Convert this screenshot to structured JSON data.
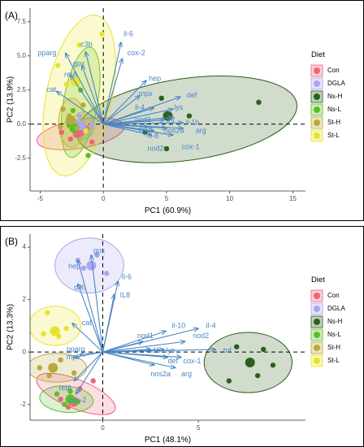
{
  "chart_data": [
    {
      "type": "scatter",
      "panel_label": "(A)",
      "xlabel": "PC1 (60.9%)",
      "ylabel": "PC2 (13.9%)",
      "xlim": [
        -5.8,
        16
      ],
      "ylim": [
        -4.9,
        8.5
      ],
      "xticks": [
        -5,
        0,
        5,
        10,
        15
      ],
      "yticks": [
        -2.5,
        0.0,
        2.5,
        5.0,
        7.5
      ],
      "ytick_labels": [
        "-2.5",
        "0.0",
        "2.5",
        "5.0",
        "7.5"
      ],
      "legend_title": "Diet",
      "groups": [
        {
          "name": "Con",
          "color": "#f0637a",
          "center": [
            -1.9,
            -0.6
          ],
          "ellipse": {
            "cx": -1.8,
            "cy": -0.7,
            "rx": 3.5,
            "ry": 1.05,
            "angle": 10
          },
          "points": [
            [
              -3.3,
              -0.6
            ],
            [
              -2.2,
              -0.8
            ],
            [
              -1.3,
              -0.3
            ],
            [
              -0.9,
              -1.3
            ],
            [
              -2.6,
              -1.1
            ]
          ]
        },
        {
          "name": "DGLA",
          "color": "#a9a6ee",
          "center": [
            -1.8,
            -0.1
          ],
          "ellipse": {
            "cx": -1.6,
            "cy": -0.1,
            "rx": 0.9,
            "ry": 1.0,
            "angle": 0
          },
          "points": [
            [
              -2.1,
              0.1
            ],
            [
              -1.4,
              -0.4
            ],
            [
              -1.9,
              0.6
            ],
            [
              -0.9,
              0.0
            ]
          ]
        },
        {
          "name": "Ns-H",
          "color": "#2c5f1d",
          "center": [
            5.1,
            0.6
          ],
          "ellipse": {
            "cx": 6.6,
            "cy": 0.35,
            "rx": 8.8,
            "ry": 3.0,
            "angle": 8
          },
          "points": [
            [
              12.3,
              1.6
            ],
            [
              5.0,
              -1.8
            ],
            [
              4.6,
              1.9
            ],
            [
              6.8,
              0.6
            ],
            [
              3.3,
              -0.6
            ]
          ]
        },
        {
          "name": "Ns-L",
          "color": "#5bbf28",
          "center": [
            -2.3,
            -0.3
          ],
          "ellipse": {
            "cx": -1.8,
            "cy": 1.6,
            "rx": 1.35,
            "ry": 4.1,
            "angle": -10
          },
          "points": [
            [
              -2.7,
              -0.1
            ],
            [
              -1.8,
              2.5
            ],
            [
              -1.2,
              -2.3
            ],
            [
              -2.4,
              1.0
            ]
          ]
        },
        {
          "name": "St-H",
          "color": "#b7a93b",
          "center": [
            -2.6,
            0.3
          ],
          "ellipse": {
            "cx": -2.5,
            "cy": 0.1,
            "rx": 1.05,
            "ry": 1.8,
            "angle": 0
          },
          "points": [
            [
              -3.2,
              1.1
            ],
            [
              -2.7,
              0.6
            ],
            [
              -2.1,
              -0.3
            ],
            [
              -1.6,
              1.4
            ],
            [
              -3.4,
              -0.2
            ]
          ]
        },
        {
          "name": "St-L",
          "color": "#e6e42a",
          "center": [
            -2.2,
            3.1
          ],
          "ellipse": {
            "cx": -1.9,
            "cy": 2.1,
            "rx": 2.6,
            "ry": 6.0,
            "angle": -12
          },
          "points": [
            [
              -1.9,
              5.8
            ],
            [
              -0.1,
              6.6
            ],
            [
              -3.6,
              4.3
            ],
            [
              -1.4,
              -0.5
            ],
            [
              -2.9,
              2.9
            ]
          ]
        }
      ],
      "loadings": [
        {
          "label": "pparg",
          "x": -3.0,
          "y": 5.2,
          "tx": -5.2,
          "ty": 5.2
        },
        {
          "label": "c3b",
          "x": -1.4,
          "y": 5.3,
          "tx": -1.8,
          "ty": 5.8
        },
        {
          "label": "gpx",
          "x": -1.7,
          "y": 4.3,
          "tx": -2.4,
          "ty": 4.4
        },
        {
          "label": "relA",
          "x": -2.6,
          "y": 3.6,
          "tx": -3.1,
          "ty": 3.6
        },
        {
          "label": "cat",
          "x": -3.7,
          "y": 2.4,
          "tx": -4.5,
          "ty": 2.5
        },
        {
          "label": "il-6",
          "x": 1.4,
          "y": 6.0,
          "tx": 1.6,
          "ty": 6.6
        },
        {
          "label": "cox-2",
          "x": 1.5,
          "y": 4.8,
          "tx": 1.9,
          "ty": 5.2
        },
        {
          "label": "hep",
          "x": 3.4,
          "y": 3.2,
          "tx": 3.6,
          "ty": 3.3
        },
        {
          "label": "mpx",
          "x": 2.9,
          "y": 2.1,
          "tx": 2.8,
          "ty": 2.2
        },
        {
          "label": "def",
          "x": 6.1,
          "y": 2.0,
          "tx": 6.6,
          "ty": 2.1
        },
        {
          "label": "lys",
          "x": 5.5,
          "y": 1.1,
          "tx": 5.6,
          "ty": 1.2
        },
        {
          "label": "il-4",
          "x": 4.0,
          "y": 1.2,
          "tx": 2.5,
          "ty": 1.2
        },
        {
          "label": "nod1",
          "x": 4.8,
          "y": 0.3,
          "tx": 2.5,
          "ty": 0.3
        },
        {
          "label": "tnf",
          "x": 5.5,
          "y": 0.5,
          "tx": 5.0,
          "ty": 0.3
        },
        {
          "label": "il-1b",
          "x": 6.3,
          "y": 0.1,
          "tx": 6.5,
          "ty": 0.1
        },
        {
          "label": "il-10",
          "x": 3.5,
          "y": -0.2,
          "tx": 2.8,
          "ty": -0.4
        },
        {
          "label": "nos2a",
          "x": 5.0,
          "y": -0.3,
          "tx": 4.8,
          "ty": -0.5
        },
        {
          "label": "arg",
          "x": 6.3,
          "y": -0.3,
          "tx": 7.3,
          "ty": -0.5
        },
        {
          "label": "il-8",
          "x": 4.0,
          "y": -0.5,
          "tx": 3.6,
          "ty": -0.9
        },
        {
          "label": "nod2",
          "x": 3.8,
          "y": -0.8,
          "tx": 3.5,
          "ty": -1.8
        },
        {
          "label": "cox-1",
          "x": 5.5,
          "y": -0.8,
          "tx": 6.2,
          "ty": -1.7
        }
      ]
    },
    {
      "type": "scatter",
      "panel_label": "(B)",
      "xlabel": "PC1 (48.1%)",
      "ylabel": "PC2 (13.3%)",
      "xlim": [
        -3.8,
        10.6
      ],
      "ylim": [
        -2.6,
        4.5
      ],
      "xticks": [
        0,
        5
      ],
      "yticks": [
        -2,
        0,
        2,
        4
      ],
      "ytick_labels": [
        "-2",
        "0",
        "2",
        "4"
      ],
      "legend_title": "Diet",
      "groups": [
        {
          "name": "Con",
          "color": "#f0637a",
          "center": [
            -1.5,
            -1.9
          ],
          "ellipse": {
            "cx": -1.4,
            "cy": -1.6,
            "rx": 2.2,
            "ry": 0.55,
            "angle": -22
          },
          "points": [
            [
              -2.2,
              -1.8
            ],
            [
              -1.2,
              -1.4
            ],
            [
              -0.5,
              -1.1
            ],
            [
              -1.8,
              -2.1
            ]
          ]
        },
        {
          "name": "DGLA",
          "color": "#a9a6ee",
          "center": [
            -0.6,
            3.3
          ],
          "ellipse": {
            "cx": -0.7,
            "cy": 3.3,
            "rx": 1.8,
            "ry": 1.05,
            "angle": 0
          },
          "points": [
            [
              -0.3,
              3.7
            ],
            [
              -1.0,
              3.2
            ],
            [
              0.2,
              3.0
            ],
            [
              -1.3,
              3.5
            ]
          ]
        },
        {
          "name": "Ns-H",
          "color": "#2c5f1d",
          "center": [
            7.7,
            -0.4
          ],
          "ellipse": {
            "cx": 7.6,
            "cy": -0.4,
            "rx": 2.3,
            "ry": 1.15,
            "angle": 0
          },
          "points": [
            [
              7.0,
              0.2
            ],
            [
              8.9,
              -0.5
            ],
            [
              6.6,
              -1.1
            ],
            [
              8.4,
              0.1
            ],
            [
              8.1,
              -0.9
            ]
          ]
        },
        {
          "name": "Ns-L",
          "color": "#5bbf28",
          "center": [
            -1.7,
            -1.8
          ],
          "ellipse": {
            "cx": -1.9,
            "cy": -1.8,
            "rx": 1.4,
            "ry": 0.5,
            "angle": -5
          },
          "points": [
            [
              -2.4,
              -1.6
            ],
            [
              -1.3,
              -1.9
            ],
            [
              -2.0,
              -2.0
            ],
            [
              -1.7,
              -1.5
            ]
          ]
        },
        {
          "name": "St-H",
          "color": "#b7a93b",
          "center": [
            -2.6,
            -0.6
          ],
          "ellipse": {
            "cx": -2.4,
            "cy": -0.6,
            "rx": 1.55,
            "ry": 0.55,
            "angle": 0
          },
          "points": [
            [
              -3.3,
              -0.6
            ],
            [
              -2.2,
              -0.3
            ],
            [
              -1.5,
              -0.8
            ],
            [
              -2.8,
              -0.9
            ]
          ]
        },
        {
          "name": "St-L",
          "color": "#e6e42a",
          "center": [
            -2.5,
            0.8
          ],
          "ellipse": {
            "cx": -2.5,
            "cy": 1.0,
            "rx": 1.35,
            "ry": 0.75,
            "angle": 0
          },
          "points": [
            [
              -2.9,
              1.5
            ],
            [
              -1.9,
              0.9
            ],
            [
              -3.1,
              0.7
            ],
            [
              -2.3,
              0.6
            ]
          ]
        }
      ],
      "loadings": [
        {
          "label": "gpx",
          "x": -0.6,
          "y": 3.7,
          "tx": -0.5,
          "ty": 3.85
        },
        {
          "label": "hep",
          "x": -1.3,
          "y": 3.5,
          "tx": -1.8,
          "ty": 3.25
        },
        {
          "label": "c3b",
          "x": -1.3,
          "y": 2.6,
          "tx": -1.5,
          "ty": 2.45
        },
        {
          "label": "il-6",
          "x": 0.8,
          "y": 2.7,
          "tx": 1.0,
          "ty": 2.85
        },
        {
          "label": "IL8",
          "x": 0.6,
          "y": 2.2,
          "tx": 0.9,
          "ty": 2.15
        },
        {
          "label": "cat",
          "x": -1.6,
          "y": 1.1,
          "tx": -1.1,
          "ty": 1.1
        },
        {
          "label": "il-10",
          "x": 3.3,
          "y": 0.8,
          "tx": 3.6,
          "ty": 1.0
        },
        {
          "label": "il-4",
          "x": 5.0,
          "y": 0.9,
          "tx": 5.4,
          "ty": 1.0
        },
        {
          "label": "nod1",
          "x": 2.1,
          "y": 0.4,
          "tx": 1.8,
          "ty": 0.6
        },
        {
          "label": "nod2",
          "x": 4.3,
          "y": 0.4,
          "tx": 4.7,
          "ty": 0.6
        },
        {
          "label": "lys",
          "x": 3.2,
          "y": 0.1,
          "tx": 3.3,
          "ty": 0.05
        },
        {
          "label": "il-1b",
          "x": 2.5,
          "y": 0.1,
          "tx": 2.3,
          "ty": 0.05
        },
        {
          "label": "tnf",
          "x": 5.9,
          "y": 0.1,
          "tx": 6.3,
          "ty": 0.05
        },
        {
          "label": "def",
          "x": 3.4,
          "y": -0.2,
          "tx": 3.4,
          "ty": -0.35
        },
        {
          "label": "cox-1",
          "x": 4.1,
          "y": -0.2,
          "tx": 4.2,
          "ty": -0.35
        },
        {
          "label": "nos2a",
          "x": 2.7,
          "y": -0.5,
          "tx": 2.5,
          "ty": -0.85
        },
        {
          "label": "arg",
          "x": 3.8,
          "y": -0.6,
          "tx": 4.1,
          "ty": -0.85
        },
        {
          "label": "mpx",
          "x": -1.2,
          "y": -0.1,
          "tx": -1.9,
          "ty": -0.2
        },
        {
          "label": "pparg",
          "x": -1.5,
          "y": -0.2,
          "tx": -1.9,
          "ty": 0.1
        },
        {
          "label": "relA",
          "x": -1.5,
          "y": -1.1,
          "tx": -2.3,
          "ty": -1.4
        },
        {
          "label": "cox-2",
          "x": -1.4,
          "y": -1.6,
          "tx": -1.8,
          "ty": -1.85
        }
      ]
    }
  ]
}
